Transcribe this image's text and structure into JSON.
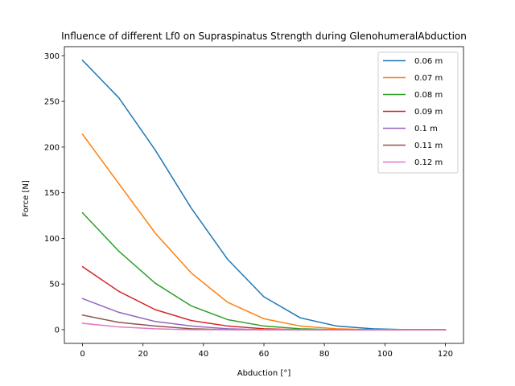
{
  "chart_data": {
    "type": "line",
    "title": "Influence of different Lf0 on Supraspinatus Strength during GlenohumeralAbduction",
    "xlabel": "Abduction [°]",
    "ylabel": "Force [N]",
    "xlim": [
      -6,
      126
    ],
    "ylim": [
      -15,
      310
    ],
    "xticks": [
      0,
      20,
      40,
      60,
      80,
      100,
      120
    ],
    "yticks": [
      0,
      50,
      100,
      150,
      200,
      250,
      300
    ],
    "grid": false,
    "legend_position": "top-right",
    "x": [
      0,
      12,
      24,
      36,
      48,
      60,
      72,
      84,
      96,
      108,
      120
    ],
    "series": [
      {
        "name": "0.06 m",
        "color": "#1f77b4",
        "values": [
          295,
          254,
          197,
          133,
          77,
          36,
          13,
          4,
          1,
          0,
          0
        ]
      },
      {
        "name": "0.07 m",
        "color": "#ff7f0e",
        "values": [
          214,
          160,
          106,
          62,
          30,
          12,
          4,
          1,
          0,
          0,
          0
        ]
      },
      {
        "name": "0.08 m",
        "color": "#2ca02c",
        "values": [
          128,
          86,
          51,
          26,
          11,
          4,
          1,
          0,
          0,
          0,
          0
        ]
      },
      {
        "name": "0.09 m",
        "color": "#d62728",
        "values": [
          69,
          42,
          22,
          10,
          4,
          1,
          0,
          0,
          0,
          0,
          0
        ]
      },
      {
        "name": "0.1 m",
        "color": "#9467bd",
        "values": [
          34,
          19,
          9,
          4,
          1,
          0,
          0,
          0,
          0,
          0,
          0
        ]
      },
      {
        "name": "0.11 m",
        "color": "#8c564b",
        "values": [
          16,
          8,
          4,
          1,
          0,
          0,
          0,
          0,
          0,
          0,
          0
        ]
      },
      {
        "name": "0.12 m",
        "color": "#e377c2",
        "values": [
          7,
          3,
          1,
          0,
          0,
          0,
          0,
          0,
          0,
          0,
          0
        ]
      }
    ]
  }
}
